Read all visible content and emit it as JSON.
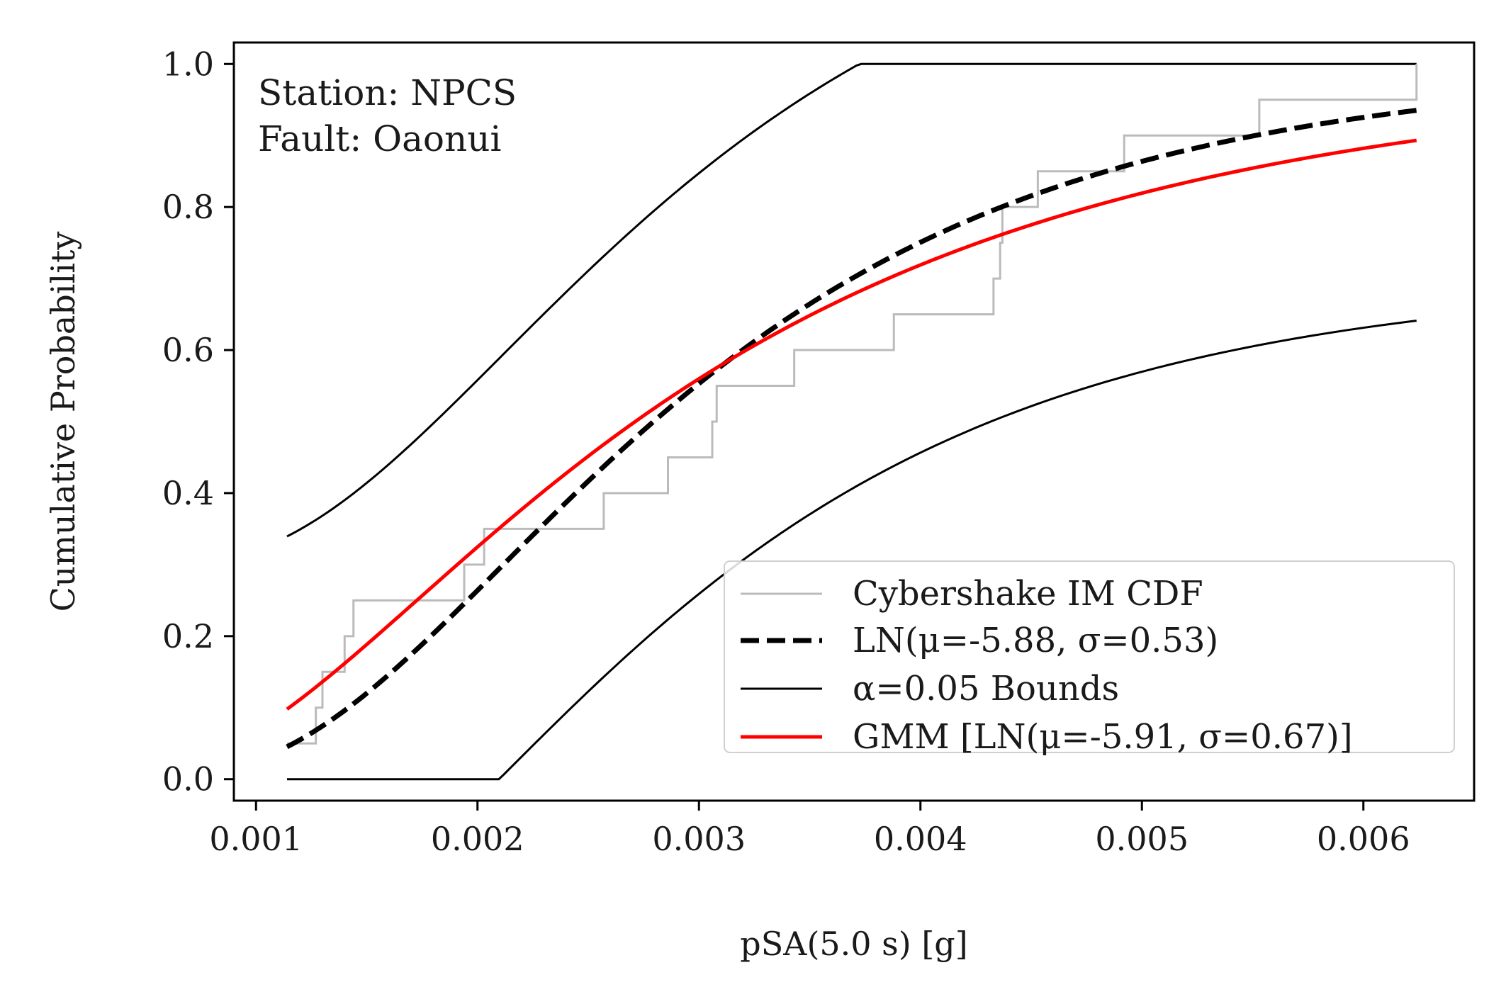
{
  "chart_data": {
    "type": "line",
    "xlabel": "pSA(5.0 s) [g]",
    "ylabel": "Cumulative Probability",
    "xlim": [
      0.0009,
      0.0065
    ],
    "ylim": [
      -0.03,
      1.03
    ],
    "x_ticks": [
      0.001,
      0.002,
      0.003,
      0.004,
      0.005,
      0.006
    ],
    "x_tick_labels": [
      "0.001",
      "0.002",
      "0.003",
      "0.004",
      "0.005",
      "0.006"
    ],
    "y_ticks": [
      0.0,
      0.2,
      0.4,
      0.6,
      0.8,
      1.0
    ],
    "y_tick_labels": [
      "0.0",
      "0.2",
      "0.4",
      "0.6",
      "0.8",
      "1.0"
    ],
    "grid": false,
    "legend_position": "lower-right",
    "annotations": [
      "Station: NPCS",
      "Fault: Oaonui"
    ],
    "legend": {
      "empirical": "Cybershake IM CDF",
      "ln": "LN(μ=-5.88, σ=0.53)",
      "bounds": "α=0.05 Bounds",
      "gmm": "GMM [LN(μ=-5.91, σ=0.67)]"
    },
    "series": [
      {
        "key": "empirical",
        "style": "step",
        "color": "#bbbbbb",
        "x": [
          0.00114,
          0.00127,
          0.0013,
          0.0014,
          0.00144,
          0.00194,
          0.00203,
          0.00257,
          0.00286,
          0.00306,
          0.00308,
          0.00343,
          0.00388,
          0.00433,
          0.00436,
          0.00437,
          0.00453,
          0.00492,
          0.00553,
          0.00624
        ],
        "y": [
          0.05,
          0.1,
          0.15,
          0.2,
          0.25,
          0.3,
          0.35,
          0.4,
          0.45,
          0.5,
          0.55,
          0.6,
          0.65,
          0.7,
          0.75,
          0.8,
          0.85,
          0.9,
          0.95,
          1.0
        ]
      },
      {
        "key": "ln",
        "style": "lognormal-cdf",
        "color": "#000000",
        "dashed": true,
        "mu": -5.88,
        "sigma": 0.53,
        "x_range": [
          0.00114,
          0.00624
        ]
      },
      {
        "key": "bounds",
        "style": "ks-bounds",
        "color": "#000000",
        "mu": -5.88,
        "sigma": 0.53,
        "alpha": 0.05,
        "d": 0.2941,
        "x_range": [
          0.00114,
          0.00624
        ]
      },
      {
        "key": "gmm",
        "style": "lognormal-cdf",
        "color": "#ff0000",
        "mu": -5.91,
        "sigma": 0.67,
        "x_range": [
          0.00114,
          0.00624
        ]
      }
    ]
  }
}
